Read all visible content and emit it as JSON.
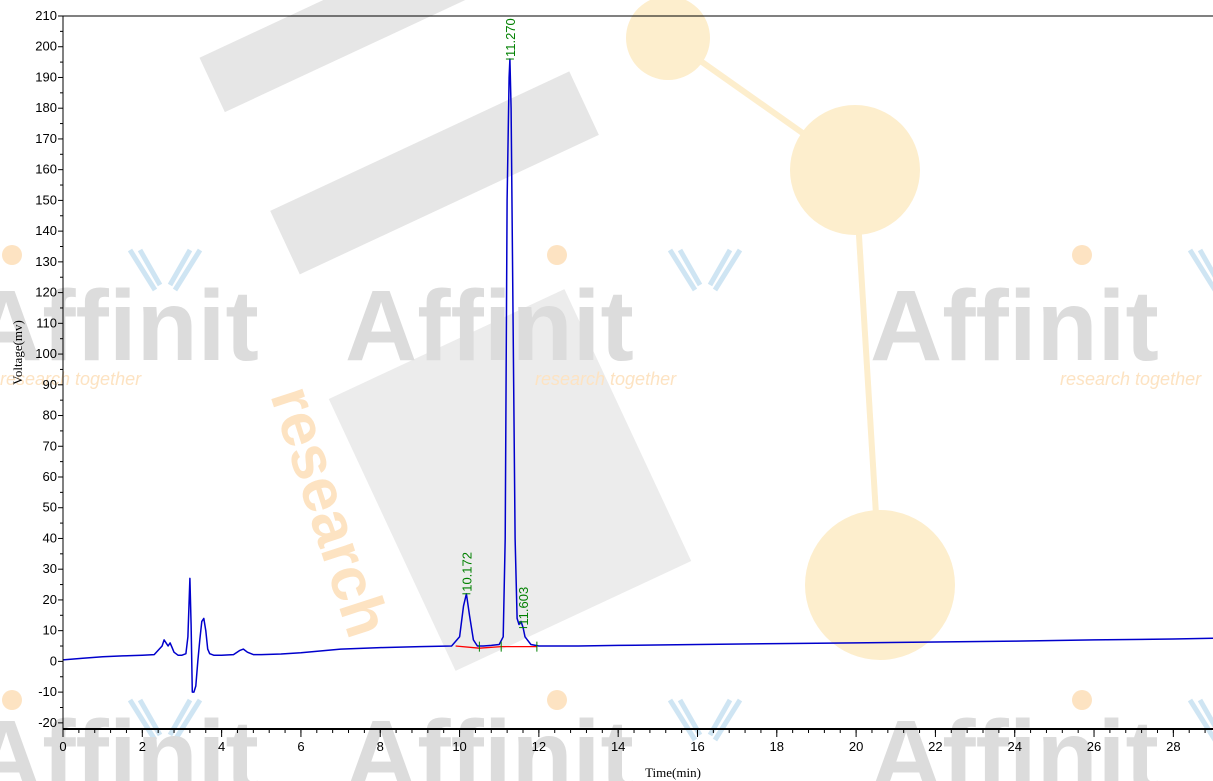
{
  "chart_data": {
    "type": "line",
    "xlabel": "Time(min)",
    "ylabel": "Voltage(mv)",
    "xlim": [
      0,
      29
    ],
    "ylim": [
      -22,
      210
    ],
    "x_ticks": [
      0,
      2,
      4,
      6,
      8,
      10,
      12,
      14,
      16,
      18,
      20,
      22,
      24,
      26,
      28
    ],
    "y_ticks": [
      -20,
      -10,
      0,
      10,
      20,
      30,
      40,
      50,
      60,
      70,
      80,
      90,
      100,
      110,
      120,
      130,
      140,
      150,
      160,
      170,
      180,
      190,
      200,
      210
    ],
    "grid": false,
    "series": [
      {
        "color": "#0000cc",
        "x": [
          0,
          0.5,
          1,
          1.5,
          2,
          2.3,
          2.5,
          2.55,
          2.6,
          2.65,
          2.7,
          2.75,
          2.8,
          2.9,
          3.0,
          3.1,
          3.15,
          3.2,
          3.23,
          3.26,
          3.3,
          3.35,
          3.4,
          3.45,
          3.5,
          3.55,
          3.6,
          3.65,
          3.7,
          3.8,
          4.0,
          4.3,
          4.45,
          4.55,
          4.65,
          4.8,
          5.0,
          5.5,
          6.0,
          7.0,
          8.0,
          9.0,
          9.8,
          10.0,
          10.1,
          10.172,
          10.25,
          10.35,
          10.45,
          10.6,
          10.8,
          11.0,
          11.1,
          11.15,
          11.2,
          11.25,
          11.27,
          11.3,
          11.35,
          11.4,
          11.45,
          11.5,
          11.55,
          11.603,
          11.65,
          11.8,
          12.0,
          13.0,
          14.0,
          16.0,
          18.0,
          20.0,
          22.0,
          24.0,
          26.0,
          28.0,
          29.0
        ],
        "y": [
          0.5,
          1,
          1.5,
          1.8,
          2,
          2.2,
          5,
          7,
          6,
          5,
          6,
          4.5,
          3,
          2,
          2,
          2.5,
          8,
          27,
          12,
          -10,
          -10,
          -8,
          0,
          7,
          13,
          14,
          10,
          4,
          2.5,
          2,
          2,
          2.2,
          3.5,
          4,
          3,
          2.2,
          2.2,
          2.4,
          2.8,
          4,
          4.5,
          4.8,
          5,
          8,
          18,
          22,
          15,
          7,
          5,
          5,
          5.2,
          5.5,
          8,
          40,
          150,
          190,
          196,
          180,
          110,
          40,
          14,
          12,
          13,
          11,
          8,
          5.5,
          5,
          5,
          5.2,
          5.5,
          5.8,
          6,
          6.3,
          6.6,
          7,
          7.3,
          7.5
        ]
      }
    ],
    "baseline": {
      "color": "#ff0000",
      "x": [
        9.9,
        10.5,
        11.05,
        11.95
      ],
      "y": [
        5,
        4.3,
        4.8,
        4.8
      ]
    },
    "peaks": [
      {
        "label": "10.172",
        "x": 10.172,
        "y": 22,
        "color": "#008000"
      },
      {
        "label": "11.270",
        "x": 11.27,
        "y": 196,
        "color": "#008000"
      },
      {
        "label": "11.603",
        "x": 11.603,
        "y": 11,
        "color": "#008000"
      }
    ],
    "integration_markers": [
      10.5,
      11.05,
      11.95
    ]
  },
  "watermark": {
    "brand": "Affinit",
    "tagline": "research together",
    "side_text": "research"
  }
}
